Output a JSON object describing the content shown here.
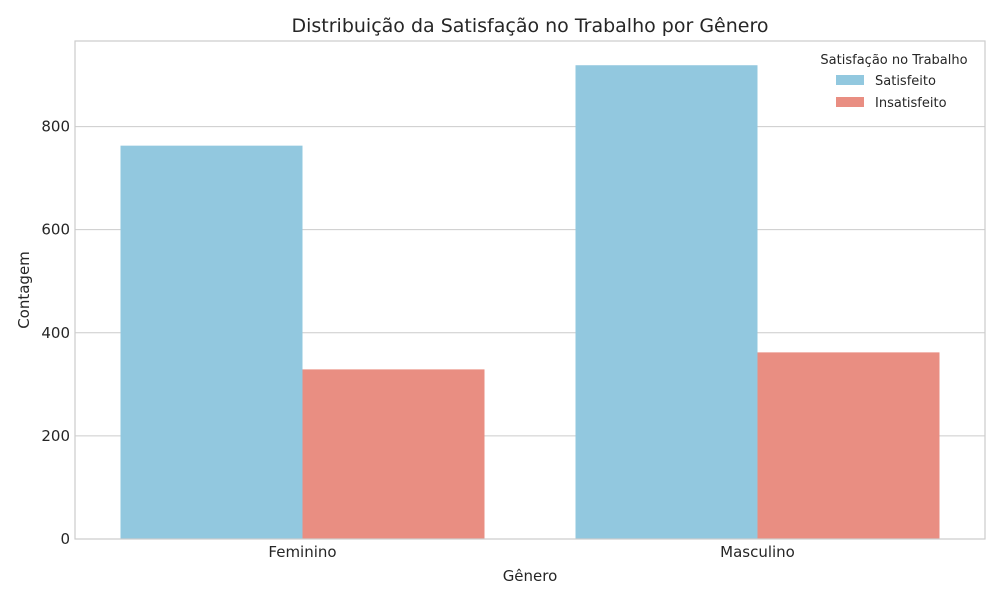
{
  "chart_data": {
    "type": "bar",
    "title": "Distribuição da Satisfação no Trabalho por Gênero",
    "xlabel": "Gênero",
    "ylabel": "Contagem",
    "categories": [
      "Feminino",
      "Masculino"
    ],
    "series": [
      {
        "name": "Satisfeito",
        "values": [
          763,
          919
        ],
        "color": "#92c8df"
      },
      {
        "name": "Insatisfeito",
        "values": [
          329,
          362
        ],
        "color": "#e98e82"
      }
    ],
    "ylim": [
      0,
      966
    ],
    "yticks": [
      0,
      200,
      400,
      600,
      800
    ],
    "grid": true,
    "legend": {
      "title": "Satisfação no Trabalho",
      "placement": "top-right"
    }
  }
}
